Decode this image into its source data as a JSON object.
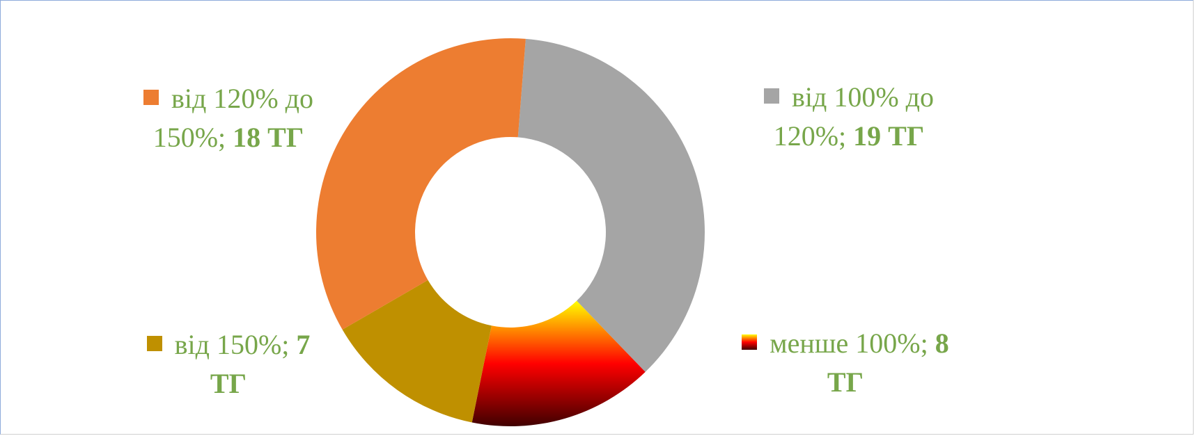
{
  "chart_data": {
    "type": "donut",
    "categories": [
      "від 100% до 120%",
      "менше 100%",
      "від 150%",
      "від 120% до 150%"
    ],
    "values": [
      19,
      8,
      7,
      18
    ],
    "value_labels": [
      "19 ТГ",
      "8 ТГ",
      "7 ТГ",
      "18 ТГ"
    ],
    "label_separator": ";",
    "colors": [
      "#a5a5a5",
      [
        "#ffff00",
        "#ff0000",
        "#400000"
      ],
      "#bf9000",
      "#ed7d31"
    ]
  }
}
